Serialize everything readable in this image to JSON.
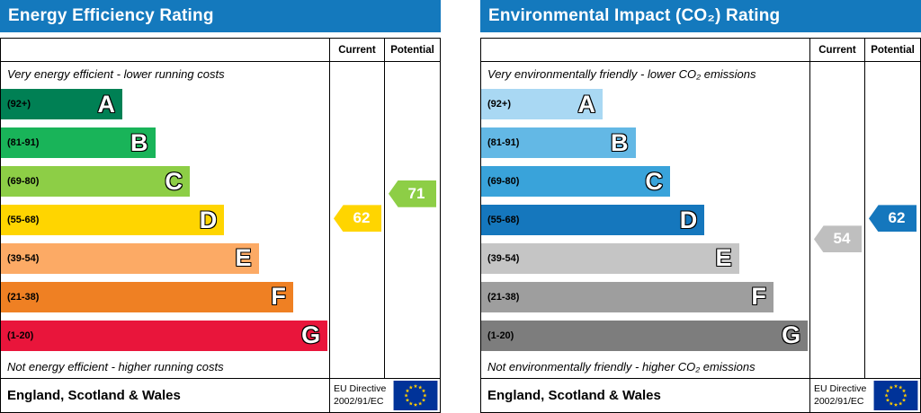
{
  "colors": {
    "header_bg": "#1479bd",
    "flag_bg": "#003399",
    "flag_star": "#ffcc00"
  },
  "chart_data": [
    {
      "type": "bar",
      "title": "Energy Efficiency Rating",
      "columns": {
        "current": "Current",
        "potential": "Potential"
      },
      "top_note": "Very energy efficient - lower running costs",
      "bottom_note": "Not energy efficient - higher running costs",
      "bands": [
        {
          "letter": "A",
          "range": "(92+)",
          "min": 92,
          "max": 100,
          "color": "#008054",
          "width_pct": 37
        },
        {
          "letter": "B",
          "range": "(81-91)",
          "min": 81,
          "max": 91,
          "color": "#19b459",
          "width_pct": 47
        },
        {
          "letter": "C",
          "range": "(69-80)",
          "min": 69,
          "max": 80,
          "color": "#8dce46",
          "width_pct": 57.5
        },
        {
          "letter": "D",
          "range": "(55-68)",
          "min": 55,
          "max": 68,
          "color": "#ffd500",
          "width_pct": 68
        },
        {
          "letter": "E",
          "range": "(39-54)",
          "min": 39,
          "max": 54,
          "color": "#fcaa65",
          "width_pct": 78.5
        },
        {
          "letter": "F",
          "range": "(21-38)",
          "min": 21,
          "max": 38,
          "color": "#ef8023",
          "width_pct": 89
        },
        {
          "letter": "G",
          "range": "(1-20)",
          "min": 1,
          "max": 20,
          "color": "#e9153b",
          "width_pct": 99.5
        }
      ],
      "current": {
        "value": 62,
        "color": "#ffd500"
      },
      "potential": {
        "value": 71,
        "color": "#8dce46"
      },
      "footer": {
        "region": "England, Scotland & Wales",
        "directive_line1": "EU Directive",
        "directive_line2": "2002/91/EC"
      }
    },
    {
      "type": "bar",
      "title": "Environmental Impact (CO₂) Rating",
      "columns": {
        "current": "Current",
        "potential": "Potential"
      },
      "top_note": "Very environmentally friendly - lower CO₂ emissions",
      "bottom_note": "Not environmentally friendly - higher CO₂ emissions",
      "bands": [
        {
          "letter": "A",
          "range": "(92+)",
          "min": 92,
          "max": 100,
          "color": "#a9d8f3",
          "width_pct": 37
        },
        {
          "letter": "B",
          "range": "(81-91)",
          "min": 81,
          "max": 91,
          "color": "#63b8e5",
          "width_pct": 47
        },
        {
          "letter": "C",
          "range": "(69-80)",
          "min": 69,
          "max": 80,
          "color": "#39a3da",
          "width_pct": 57.5
        },
        {
          "letter": "D",
          "range": "(55-68)",
          "min": 55,
          "max": 68,
          "color": "#1577bd",
          "width_pct": 68
        },
        {
          "letter": "E",
          "range": "(39-54)",
          "min": 39,
          "max": 54,
          "color": "#c5c5c5",
          "width_pct": 78.5
        },
        {
          "letter": "F",
          "range": "(21-38)",
          "min": 21,
          "max": 38,
          "color": "#9e9e9e",
          "width_pct": 89
        },
        {
          "letter": "G",
          "range": "(1-20)",
          "min": 1,
          "max": 20,
          "color": "#7d7d7d",
          "width_pct": 99.5
        }
      ],
      "current": {
        "value": 54,
        "color": "#bfbfbf"
      },
      "potential": {
        "value": 62,
        "color": "#1577bd"
      },
      "footer": {
        "region": "England, Scotland & Wales",
        "directive_line1": "EU Directive",
        "directive_line2": "2002/91/EC"
      }
    }
  ]
}
